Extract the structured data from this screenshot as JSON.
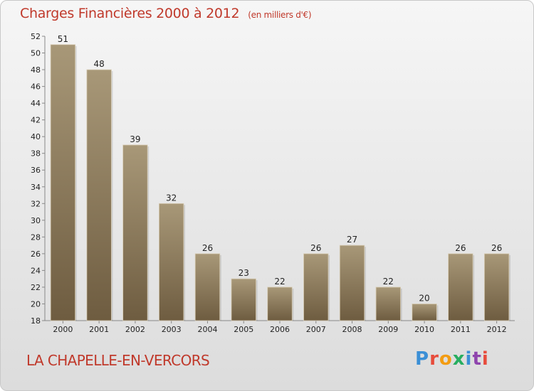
{
  "header": {
    "title": "Charges Financières 2000 à 2012",
    "subtitle": "(en milliers d'€)"
  },
  "footer": {
    "commune": "LA CHAPELLE-EN-VERCORS",
    "logo": "Proxiti",
    "logo_colors": [
      "#3b8fd6",
      "#e74c3c",
      "#f39c12",
      "#27ae60",
      "#3b8fd6",
      "#8e44ad",
      "#e74c3c"
    ]
  },
  "chart_data": {
    "type": "bar",
    "title": "Charges Financières 2000 à 2012",
    "subtitle": "(en milliers d'€)",
    "xlabel": "",
    "ylabel": "",
    "categories": [
      "2000",
      "2001",
      "2002",
      "2003",
      "2004",
      "2005",
      "2006",
      "2007",
      "2008",
      "2009",
      "2010",
      "2011",
      "2012"
    ],
    "values": [
      51,
      48,
      39,
      32,
      26,
      23,
      22,
      26,
      27,
      22,
      20,
      26,
      26
    ],
    "ylim": [
      18,
      52
    ],
    "yticks": [
      18,
      20,
      22,
      24,
      26,
      28,
      30,
      32,
      34,
      36,
      38,
      40,
      42,
      44,
      46,
      48,
      50,
      52
    ],
    "grid": false,
    "legend": "none",
    "bar_color_top": "#a89878",
    "bar_color_bottom": "#6e5c40"
  }
}
